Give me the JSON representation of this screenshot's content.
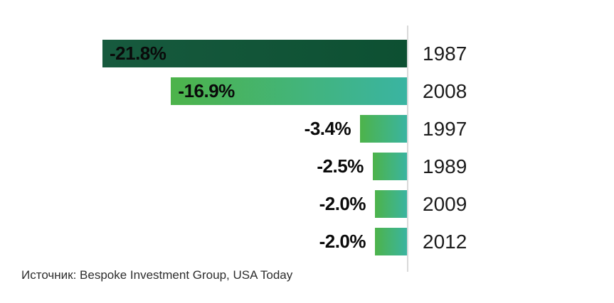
{
  "chart_data": {
    "type": "bar",
    "orientation": "horizontal",
    "bars_alignment": "right-aligned-to-axis",
    "title": "",
    "xlabel": "",
    "ylabel": "",
    "categories": [
      "1987",
      "2008",
      "1997",
      "1989",
      "2009",
      "2012"
    ],
    "values": [
      -21.8,
      -16.9,
      -3.4,
      -2.5,
      -2.0,
      -2.0
    ],
    "labels": [
      "-21.8%",
      "-16.9%",
      "-3.4%",
      "-2.5%",
      "-2.0%",
      "-2.0%"
    ],
    "label_positions": [
      "inside",
      "inside",
      "outside",
      "outside",
      "outside",
      "outside"
    ],
    "bar_colors": [
      {
        "start": "#175a3e",
        "end": "#0d5032"
      },
      {
        "start": "#4db34a",
        "end": "#3ab4a2"
      },
      {
        "start": "#4db34a",
        "end": "#3ab4a2"
      },
      {
        "start": "#4db34a",
        "end": "#3ab4a2"
      },
      {
        "start": "#4db34a",
        "end": "#3ab4a2"
      },
      {
        "start": "#4db34a",
        "end": "#3ab4a2"
      }
    ],
    "value_range": [
      -21.8,
      0
    ],
    "axis_line_color": "#d9d9d9",
    "grid": false,
    "legend": false
  },
  "source": {
    "text": "Источник: Bespoke Investment Group, USA Today"
  }
}
